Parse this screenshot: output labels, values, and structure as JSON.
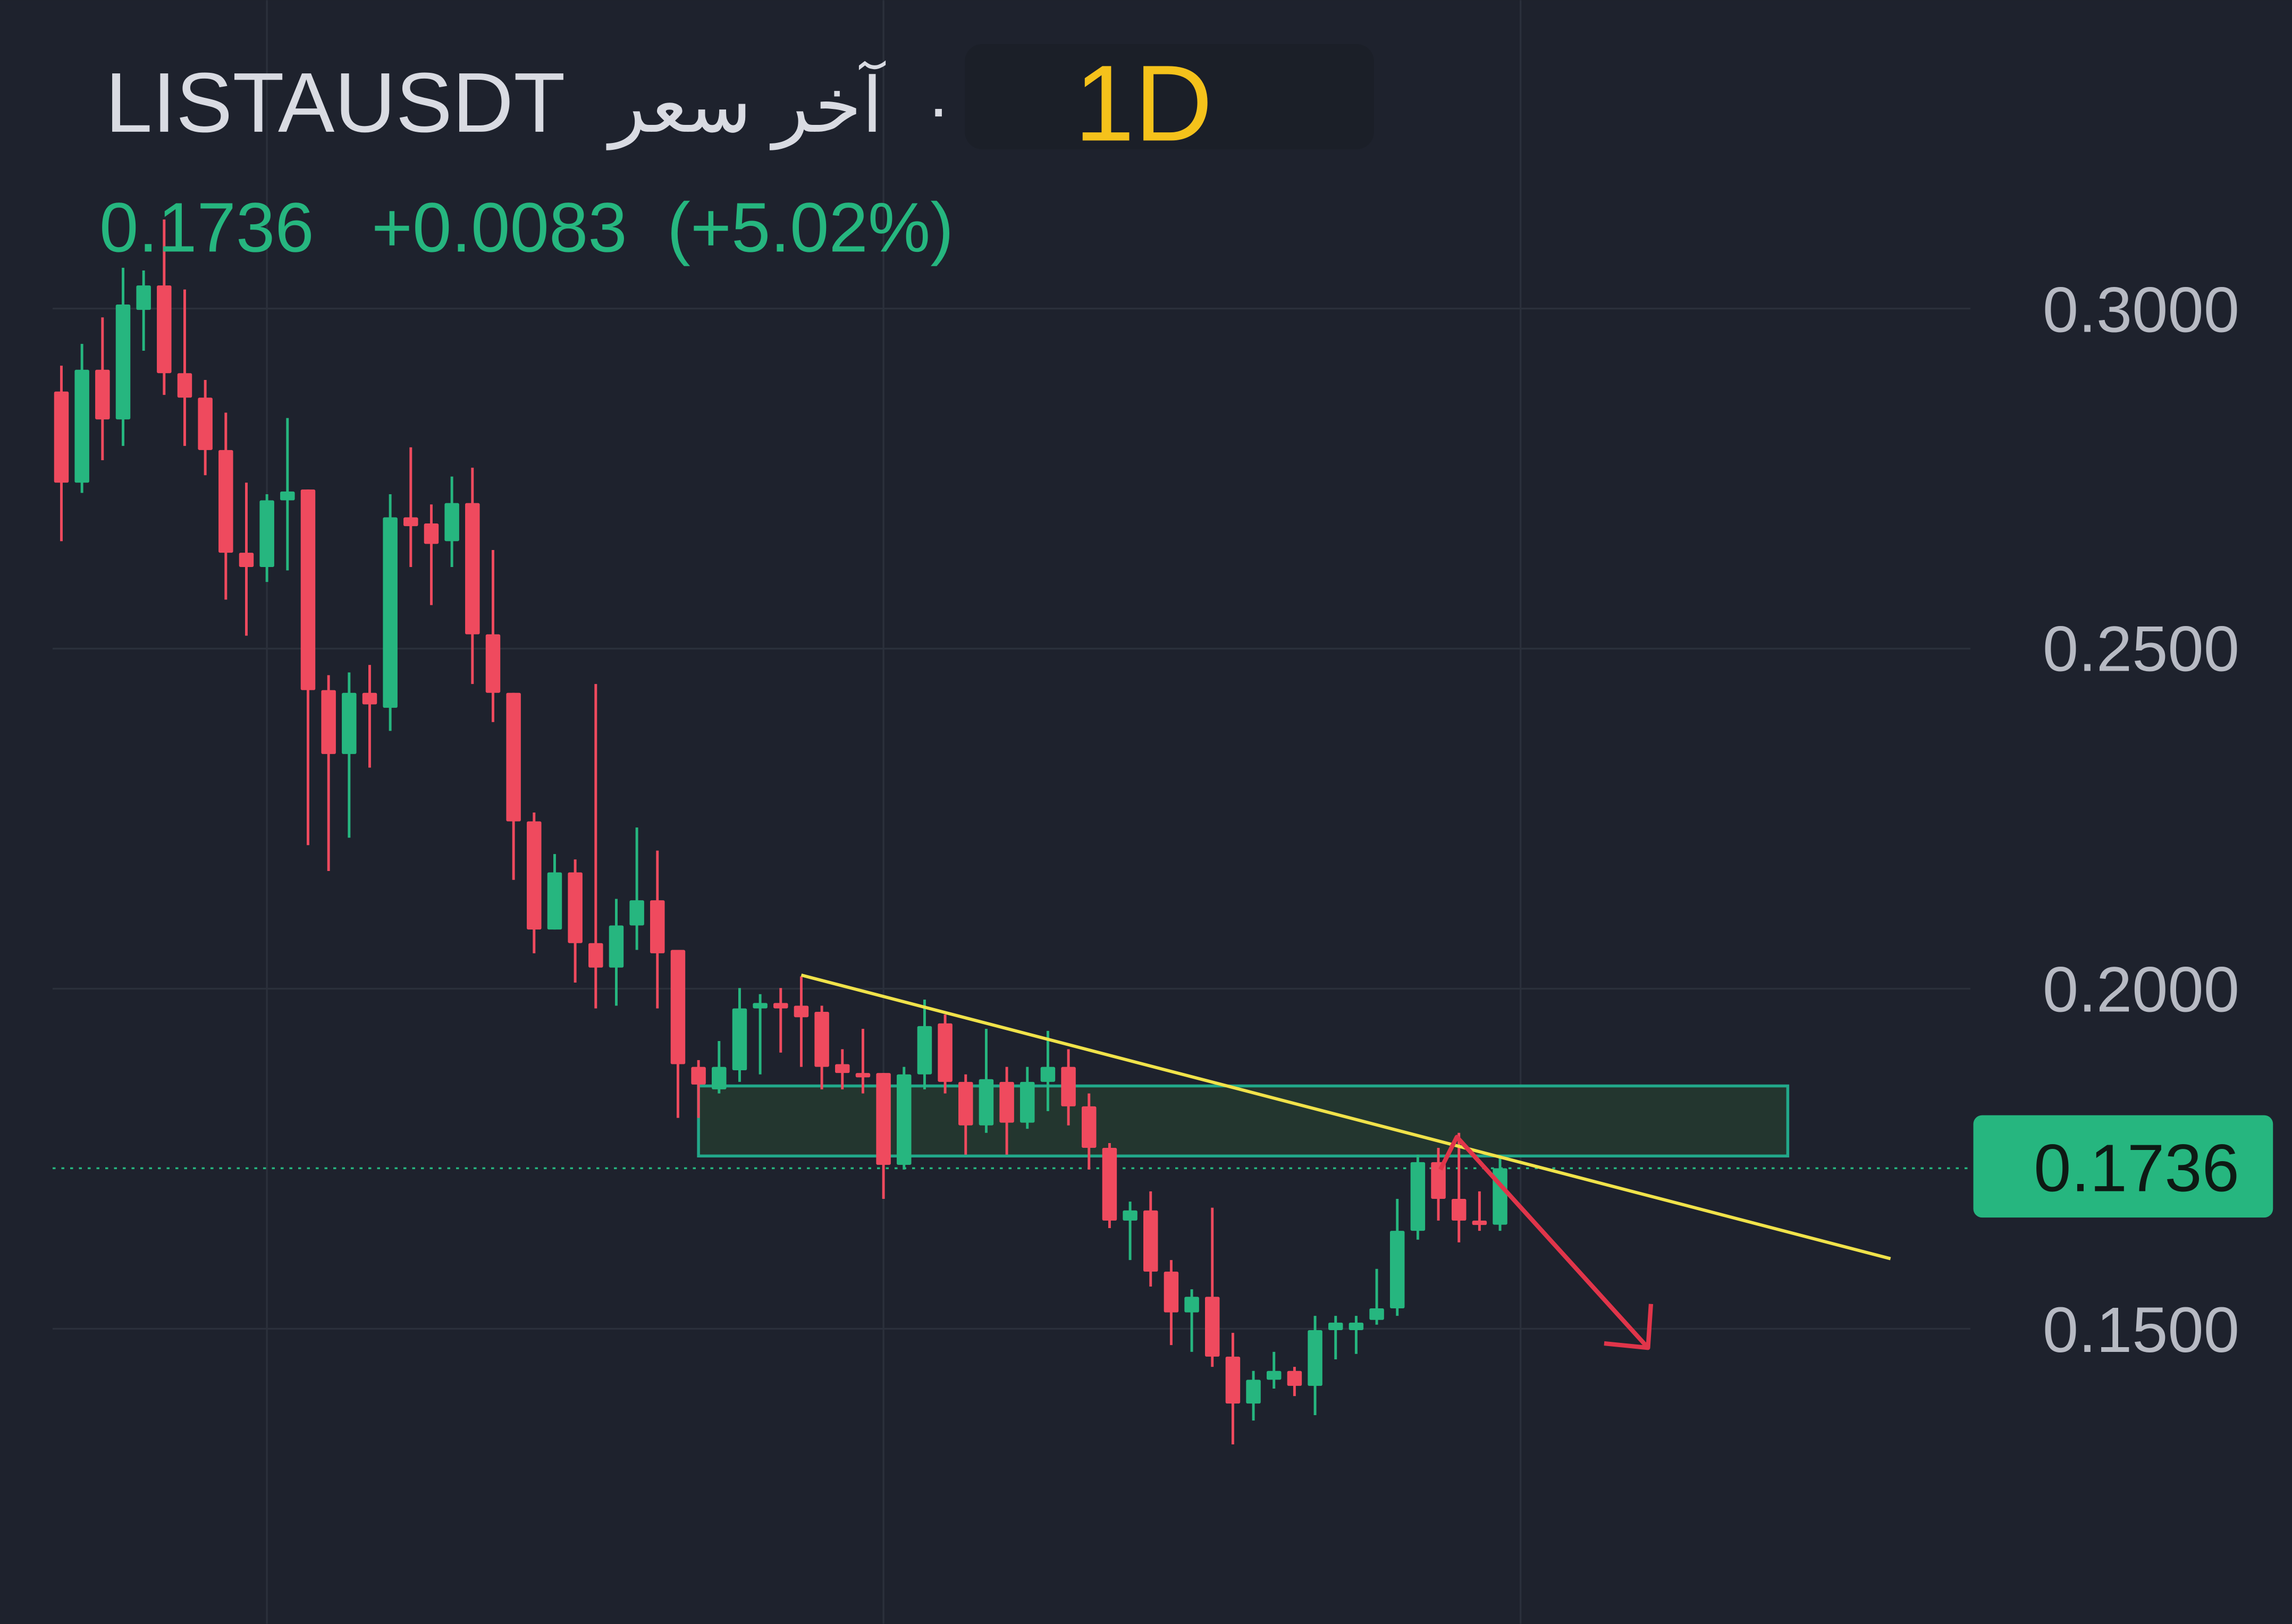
{
  "header": {
    "symbol": "LISTAUSDT",
    "label_arabic": "آخر سعر",
    "separator": "·",
    "interval": "1D",
    "last_price": "0.1736",
    "change": "+0.0083",
    "change_percent": "(+5.02%)"
  },
  "price_axis": {
    "labels": [
      "0.3000",
      "0.2500",
      "0.2000",
      "0.1500"
    ],
    "current_price_label": "0.1736"
  },
  "colors": {
    "background": "#1e222d",
    "grid": "#2b303b",
    "up": "#26b67f",
    "down": "#ef4a5e",
    "header_text": "#d9dbe2",
    "interval": "#f5c21b",
    "trendline": "#f0e24a",
    "zone_border": "#22a88a",
    "zone_fill": "#243a30",
    "arrow": "#e0354a",
    "price_tag_text": "#0e1a14"
  },
  "chart_data": {
    "type": "candlestick",
    "title": "LISTAUSDT",
    "interval": "1D",
    "ylim": [
      0.125,
      0.32
    ],
    "y_ticks": [
      0.3,
      0.25,
      0.2,
      0.15
    ],
    "grid": true,
    "vertical_grid_bars": [
      10,
      40,
      71
    ],
    "last_price": 0.1736,
    "candles_ohlc": [
      [
        0.2878,
        0.2916,
        0.2658,
        0.2744
      ],
      [
        0.2744,
        0.2948,
        0.2729,
        0.291
      ],
      [
        0.291,
        0.2987,
        0.2777,
        0.2837
      ],
      [
        0.2837,
        0.306,
        0.2798,
        0.3006
      ],
      [
        0.2998,
        0.3056,
        0.2938,
        0.3034
      ],
      [
        0.3034,
        0.3131,
        0.2873,
        0.2905
      ],
      [
        0.2905,
        0.3028,
        0.2798,
        0.2869
      ],
      [
        0.2869,
        0.2895,
        0.2755,
        0.2792
      ],
      [
        0.2792,
        0.2847,
        0.2572,
        0.2641
      ],
      [
        0.2641,
        0.2744,
        0.2519,
        0.262
      ],
      [
        0.262,
        0.2727,
        0.2598,
        0.2718
      ],
      [
        0.2718,
        0.2839,
        0.2615,
        0.2731
      ],
      [
        0.2734,
        0.2734,
        0.2211,
        0.2439
      ],
      [
        0.2439,
        0.2461,
        0.2173,
        0.2345
      ],
      [
        0.2345,
        0.2465,
        0.2222,
        0.2435
      ],
      [
        0.2435,
        0.2476,
        0.2325,
        0.2418
      ],
      [
        0.2413,
        0.2727,
        0.2379,
        0.2693
      ],
      [
        0.2693,
        0.2796,
        0.262,
        0.268
      ],
      [
        0.2684,
        0.2712,
        0.2564,
        0.2654
      ],
      [
        0.2658,
        0.2753,
        0.262,
        0.2714
      ],
      [
        0.2714,
        0.2766,
        0.2448,
        0.2521
      ],
      [
        0.2521,
        0.2645,
        0.2392,
        0.2435
      ],
      [
        0.2435,
        0.2435,
        0.216,
        0.2246
      ],
      [
        0.2246,
        0.2259,
        0.2052,
        0.2087
      ],
      [
        0.2087,
        0.2198,
        0.2087,
        0.2171
      ],
      [
        0.2171,
        0.219,
        0.2009,
        0.2067
      ],
      [
        0.2067,
        0.2448,
        0.1971,
        0.2031
      ],
      [
        0.2031,
        0.2132,
        0.1975,
        0.2093
      ],
      [
        0.2093,
        0.2237,
        0.2057,
        0.213
      ],
      [
        0.213,
        0.2203,
        0.1971,
        0.2052
      ],
      [
        0.2057,
        0.2057,
        0.181,
        0.1889
      ],
      [
        0.1885,
        0.1895,
        0.181,
        0.1859
      ],
      [
        0.1852,
        0.1923,
        0.1846,
        0.1885
      ],
      [
        0.188,
        0.2001,
        0.1863,
        0.1971
      ],
      [
        0.1971,
        0.1992,
        0.1874,
        0.1979
      ],
      [
        0.1979,
        0.2001,
        0.1906,
        0.1971
      ],
      [
        0.1975,
        0.2018,
        0.1885,
        0.1958
      ],
      [
        0.1966,
        0.1975,
        0.1852,
        0.1885
      ],
      [
        0.1889,
        0.1911,
        0.1852,
        0.1876
      ],
      [
        0.1876,
        0.1941,
        0.1846,
        0.187
      ],
      [
        0.1876,
        0.1876,
        0.1691,
        0.1741
      ],
      [
        0.1741,
        0.1885,
        0.1734,
        0.1874
      ],
      [
        0.1874,
        0.1984,
        0.1852,
        0.1945
      ],
      [
        0.1949,
        0.1962,
        0.1846,
        0.1863
      ],
      [
        0.1863,
        0.1874,
        0.1756,
        0.1799
      ],
      [
        0.1799,
        0.1941,
        0.1788,
        0.1867
      ],
      [
        0.1863,
        0.1885,
        0.1756,
        0.1803
      ],
      [
        0.1803,
        0.1885,
        0.1794,
        0.1863
      ],
      [
        0.1863,
        0.1938,
        0.182,
        0.1885
      ],
      [
        0.1885,
        0.1911,
        0.1799,
        0.1827
      ],
      [
        0.1827,
        0.1846,
        0.1734,
        0.1766
      ],
      [
        0.1766,
        0.1773,
        0.1648,
        0.1659
      ],
      [
        0.1659,
        0.1687,
        0.1601,
        0.1674
      ],
      [
        0.1674,
        0.1702,
        0.1562,
        0.1584
      ],
      [
        0.1584,
        0.1601,
        0.1476,
        0.1524
      ],
      [
        0.1524,
        0.1558,
        0.1466,
        0.1547
      ],
      [
        0.1547,
        0.1678,
        0.1444,
        0.1459
      ],
      [
        0.1459,
        0.1494,
        0.133,
        0.139
      ],
      [
        0.139,
        0.1438,
        0.1365,
        0.1425
      ],
      [
        0.1425,
        0.1466,
        0.1412,
        0.1438
      ],
      [
        0.1438,
        0.1444,
        0.1401,
        0.1416
      ],
      [
        0.1416,
        0.1519,
        0.1373,
        0.1498
      ],
      [
        0.1498,
        0.1519,
        0.1455,
        0.1509
      ],
      [
        0.1498,
        0.1519,
        0.1463,
        0.1509
      ],
      [
        0.1513,
        0.1588,
        0.1506,
        0.153
      ],
      [
        0.153,
        0.1691,
        0.1519,
        0.1644
      ],
      [
        0.1644,
        0.1756,
        0.1631,
        0.1745
      ],
      [
        0.1745,
        0.1766,
        0.1659,
        0.1691
      ],
      [
        0.1691,
        0.1788,
        0.1627,
        0.1659
      ],
      [
        0.1659,
        0.1702,
        0.1644,
        0.1653
      ],
      [
        0.1653,
        0.1756,
        0.1644,
        0.1736
      ]
    ],
    "drawings": {
      "trendline": {
        "from": {
          "bar": 36,
          "price": 0.202
        },
        "to": {
          "bar": 89,
          "price": 0.1603
        }
      },
      "zone": {
        "from_bar": 31,
        "to_bar": 84,
        "top": 0.1857,
        "bottom": 0.1754
      },
      "arrow": [
        {
          "bar": 67.1,
          "price": 0.1734
        },
        {
          "bar": 67.9,
          "price": 0.1782
        },
        {
          "bar": 77.2,
          "price": 0.1472
        }
      ]
    }
  }
}
